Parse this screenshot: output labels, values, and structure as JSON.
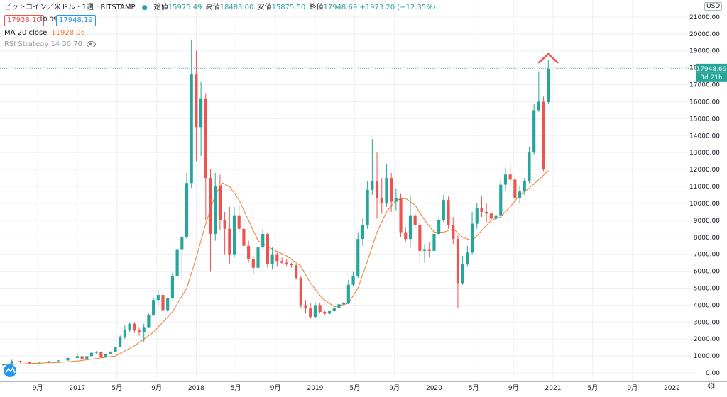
{
  "header": {
    "symbol": "ビットコイン／米ドル · 1週 · BITSTAMP",
    "open_label": "始値",
    "open_value": "15975.49",
    "high_label": "高値",
    "high_value": "18483.00",
    "low_label": "安値",
    "low_value": "15875.50",
    "close_label": "終値",
    "close_value": "17948.69",
    "change_value": "+1973.20 (+12.35%)"
  },
  "bid": "17938.10",
  "spread": "10.09",
  "ask": "17948.19",
  "ma_legend": {
    "label": "MA 20 close",
    "value": "11928.06"
  },
  "rsi_legend": {
    "label": "RSI Strategy 14 30 70"
  },
  "currency_button": "USD",
  "price_label": "17948.69",
  "countdown_label": "3d 21h",
  "colors": {
    "up": "#26a69a",
    "down": "#ef5350",
    "ma": "#f57c2b",
    "grid": "#eef0f3",
    "current_price_line": "#26a69a"
  },
  "chart_data": {
    "type": "candlestick",
    "timeframe": "1 week",
    "ylim": [
      -500,
      22000
    ],
    "y_ticks": [
      0,
      1000,
      2000,
      3000,
      4000,
      5000,
      6000,
      7000,
      8000,
      9000,
      10000,
      11000,
      12000,
      13000,
      14000,
      15000,
      16000,
      17000,
      18000,
      19000,
      20000,
      21000
    ],
    "y_tick_labels": [
      "0.00",
      "1000.00",
      "2000.00",
      "3000.00",
      "4000.00",
      "5000.00",
      "6000.00",
      "7000.00",
      "8000.00",
      "9000.00",
      "10000.00",
      "11000.00",
      "12000.00",
      "13000.00",
      "14000.00",
      "15000.00",
      "16000.00",
      "17000.00",
      "18000.00",
      "19000.00",
      "20000.00",
      "21000.00"
    ],
    "x_ticks": [
      "9月",
      "2017",
      "5月",
      "9月",
      "2018",
      "5月",
      "9月",
      "2019",
      "5月",
      "9月",
      "2020",
      "5月",
      "9月",
      "2021",
      "5月",
      "9月",
      "2022"
    ],
    "x_tick_positions": [
      2016.667,
      2017.0,
      2017.333,
      2017.667,
      2018.0,
      2018.333,
      2018.667,
      2019.0,
      2019.333,
      2019.667,
      2020.0,
      2020.333,
      2020.667,
      2021.0,
      2021.333,
      2021.667,
      2022.0
    ],
    "xlim": [
      2016.35,
      2022.2
    ],
    "candles": [
      {
        "t": 2016.38,
        "o": 450,
        "h": 540,
        "l": 440,
        "c": 530
      },
      {
        "t": 2016.45,
        "o": 530,
        "h": 780,
        "l": 520,
        "c": 700
      },
      {
        "t": 2016.52,
        "o": 700,
        "h": 720,
        "l": 580,
        "c": 650
      },
      {
        "t": 2016.6,
        "o": 650,
        "h": 660,
        "l": 550,
        "c": 580
      },
      {
        "t": 2016.68,
        "o": 580,
        "h": 620,
        "l": 560,
        "c": 610
      },
      {
        "t": 2016.76,
        "o": 610,
        "h": 700,
        "l": 600,
        "c": 690
      },
      {
        "t": 2016.84,
        "o": 690,
        "h": 760,
        "l": 680,
        "c": 740
      },
      {
        "t": 2016.92,
        "o": 740,
        "h": 900,
        "l": 730,
        "c": 880
      },
      {
        "t": 2017.0,
        "o": 880,
        "h": 1150,
        "l": 870,
        "c": 990
      },
      {
        "t": 2017.04,
        "o": 990,
        "h": 1000,
        "l": 760,
        "c": 820
      },
      {
        "t": 2017.08,
        "o": 820,
        "h": 1000,
        "l": 810,
        "c": 990
      },
      {
        "t": 2017.12,
        "o": 990,
        "h": 1200,
        "l": 980,
        "c": 1190
      },
      {
        "t": 2017.16,
        "o": 1190,
        "h": 1290,
        "l": 1100,
        "c": 1240
      },
      {
        "t": 2017.2,
        "o": 1240,
        "h": 1260,
        "l": 900,
        "c": 960
      },
      {
        "t": 2017.24,
        "o": 960,
        "h": 1150,
        "l": 930,
        "c": 1130
      },
      {
        "t": 2017.28,
        "o": 1130,
        "h": 1280,
        "l": 1100,
        "c": 1260
      },
      {
        "t": 2017.32,
        "o": 1260,
        "h": 1550,
        "l": 1250,
        "c": 1530
      },
      {
        "t": 2017.36,
        "o": 1530,
        "h": 2200,
        "l": 1520,
        "c": 2100
      },
      {
        "t": 2017.4,
        "o": 2100,
        "h": 2800,
        "l": 2000,
        "c": 2550
      },
      {
        "t": 2017.44,
        "o": 2550,
        "h": 2980,
        "l": 2400,
        "c": 2900
      },
      {
        "t": 2017.48,
        "o": 2900,
        "h": 3000,
        "l": 2350,
        "c": 2500
      },
      {
        "t": 2017.52,
        "o": 2500,
        "h": 2700,
        "l": 2200,
        "c": 2400
      },
      {
        "t": 2017.56,
        "o": 2400,
        "h": 2900,
        "l": 1850,
        "c": 2700
      },
      {
        "t": 2017.6,
        "o": 2700,
        "h": 3500,
        "l": 2650,
        "c": 3400
      },
      {
        "t": 2017.64,
        "o": 3400,
        "h": 4400,
        "l": 3350,
        "c": 4300
      },
      {
        "t": 2017.68,
        "o": 4300,
        "h": 4900,
        "l": 4000,
        "c": 4600
      },
      {
        "t": 2017.72,
        "o": 4600,
        "h": 4700,
        "l": 3000,
        "c": 3700
      },
      {
        "t": 2017.76,
        "o": 3700,
        "h": 4450,
        "l": 3600,
        "c": 4400
      },
      {
        "t": 2017.8,
        "o": 4400,
        "h": 5900,
        "l": 4350,
        "c": 5700
      },
      {
        "t": 2017.84,
        "o": 5700,
        "h": 7500,
        "l": 5400,
        "c": 7300
      },
      {
        "t": 2017.88,
        "o": 7300,
        "h": 8100,
        "l": 5500,
        "c": 8000
      },
      {
        "t": 2017.92,
        "o": 8000,
        "h": 11800,
        "l": 7900,
        "c": 11200
      },
      {
        "t": 2017.96,
        "o": 11200,
        "h": 19666,
        "l": 10900,
        "c": 17600
      },
      {
        "t": 2018.0,
        "o": 17600,
        "h": 19000,
        "l": 12500,
        "c": 14500
      },
      {
        "t": 2018.04,
        "o": 14500,
        "h": 17200,
        "l": 12800,
        "c": 16200
      },
      {
        "t": 2018.08,
        "o": 16200,
        "h": 16500,
        "l": 9000,
        "c": 11500
      },
      {
        "t": 2018.12,
        "o": 11500,
        "h": 12000,
        "l": 6000,
        "c": 8200
      },
      {
        "t": 2018.16,
        "o": 8200,
        "h": 11800,
        "l": 7800,
        "c": 11000
      },
      {
        "t": 2018.2,
        "o": 11000,
        "h": 11700,
        "l": 8400,
        "c": 9000
      },
      {
        "t": 2018.24,
        "o": 9000,
        "h": 9500,
        "l": 7000,
        "c": 8500
      },
      {
        "t": 2018.28,
        "o": 8500,
        "h": 9800,
        "l": 6400,
        "c": 7000
      },
      {
        "t": 2018.32,
        "o": 7000,
        "h": 9800,
        "l": 6800,
        "c": 9300
      },
      {
        "t": 2018.36,
        "o": 9300,
        "h": 9900,
        "l": 8300,
        "c": 8500
      },
      {
        "t": 2018.4,
        "o": 8500,
        "h": 8800,
        "l": 7300,
        "c": 7500
      },
      {
        "t": 2018.44,
        "o": 7500,
        "h": 7800,
        "l": 6500,
        "c": 6700
      },
      {
        "t": 2018.48,
        "o": 6700,
        "h": 6900,
        "l": 5800,
        "c": 6200
      },
      {
        "t": 2018.52,
        "o": 6200,
        "h": 7600,
        "l": 6100,
        "c": 7400
      },
      {
        "t": 2018.56,
        "o": 7400,
        "h": 8500,
        "l": 7300,
        "c": 8200
      },
      {
        "t": 2018.6,
        "o": 8200,
        "h": 8300,
        "l": 6200,
        "c": 6400
      },
      {
        "t": 2018.64,
        "o": 6400,
        "h": 7400,
        "l": 6100,
        "c": 7000
      },
      {
        "t": 2018.68,
        "o": 7000,
        "h": 7100,
        "l": 6300,
        "c": 6600
      },
      {
        "t": 2018.72,
        "o": 6600,
        "h": 6800,
        "l": 6400,
        "c": 6500
      },
      {
        "t": 2018.76,
        "o": 6500,
        "h": 6700,
        "l": 6300,
        "c": 6400
      },
      {
        "t": 2018.8,
        "o": 6400,
        "h": 6500,
        "l": 6200,
        "c": 6350
      },
      {
        "t": 2018.84,
        "o": 6350,
        "h": 6400,
        "l": 5500,
        "c": 5600
      },
      {
        "t": 2018.88,
        "o": 5600,
        "h": 5700,
        "l": 3800,
        "c": 4000
      },
      {
        "t": 2018.92,
        "o": 4000,
        "h": 4300,
        "l": 3500,
        "c": 3800
      },
      {
        "t": 2018.96,
        "o": 3800,
        "h": 4100,
        "l": 3200,
        "c": 3300
      },
      {
        "t": 2019.0,
        "o": 3300,
        "h": 4200,
        "l": 3200,
        "c": 4000
      },
      {
        "t": 2019.04,
        "o": 4000,
        "h": 4100,
        "l": 3500,
        "c": 3600
      },
      {
        "t": 2019.08,
        "o": 3600,
        "h": 3700,
        "l": 3400,
        "c": 3500
      },
      {
        "t": 2019.12,
        "o": 3500,
        "h": 3700,
        "l": 3400,
        "c": 3650
      },
      {
        "t": 2019.16,
        "o": 3650,
        "h": 3900,
        "l": 3600,
        "c": 3850
      },
      {
        "t": 2019.2,
        "o": 3850,
        "h": 4100,
        "l": 3800,
        "c": 4050
      },
      {
        "t": 2019.24,
        "o": 4050,
        "h": 4200,
        "l": 3950,
        "c": 4100
      },
      {
        "t": 2019.28,
        "o": 4100,
        "h": 5500,
        "l": 4050,
        "c": 5200
      },
      {
        "t": 2019.32,
        "o": 5200,
        "h": 6000,
        "l": 5100,
        "c": 5700
      },
      {
        "t": 2019.36,
        "o": 5700,
        "h": 8300,
        "l": 5600,
        "c": 7900
      },
      {
        "t": 2019.4,
        "o": 7900,
        "h": 9100,
        "l": 7500,
        "c": 8700
      },
      {
        "t": 2019.44,
        "o": 8700,
        "h": 11300,
        "l": 8500,
        "c": 10800
      },
      {
        "t": 2019.48,
        "o": 10800,
        "h": 13800,
        "l": 10500,
        "c": 11300
      },
      {
        "t": 2019.52,
        "o": 11300,
        "h": 13000,
        "l": 9100,
        "c": 10300
      },
      {
        "t": 2019.56,
        "o": 10300,
        "h": 11500,
        "l": 9400,
        "c": 10000
      },
      {
        "t": 2019.6,
        "o": 10000,
        "h": 12300,
        "l": 9800,
        "c": 11500
      },
      {
        "t": 2019.64,
        "o": 11500,
        "h": 11800,
        "l": 9500,
        "c": 10100
      },
      {
        "t": 2019.68,
        "o": 10100,
        "h": 10900,
        "l": 9600,
        "c": 10300
      },
      {
        "t": 2019.72,
        "o": 10300,
        "h": 10600,
        "l": 8000,
        "c": 8300
      },
      {
        "t": 2019.76,
        "o": 8300,
        "h": 8600,
        "l": 7700,
        "c": 7900
      },
      {
        "t": 2019.8,
        "o": 7900,
        "h": 10500,
        "l": 7400,
        "c": 9300
      },
      {
        "t": 2019.84,
        "o": 9300,
        "h": 9500,
        "l": 8500,
        "c": 8700
      },
      {
        "t": 2019.88,
        "o": 8700,
        "h": 8800,
        "l": 6500,
        "c": 7200
      },
      {
        "t": 2019.92,
        "o": 7200,
        "h": 7600,
        "l": 6500,
        "c": 7300
      },
      {
        "t": 2019.96,
        "o": 7300,
        "h": 7700,
        "l": 6800,
        "c": 7200
      },
      {
        "t": 2020.0,
        "o": 7200,
        "h": 8500,
        "l": 7000,
        "c": 8200
      },
      {
        "t": 2020.04,
        "o": 8200,
        "h": 9200,
        "l": 8100,
        "c": 9000
      },
      {
        "t": 2020.08,
        "o": 9000,
        "h": 10500,
        "l": 8900,
        "c": 10200
      },
      {
        "t": 2020.12,
        "o": 10200,
        "h": 10400,
        "l": 8500,
        "c": 8700
      },
      {
        "t": 2020.16,
        "o": 8700,
        "h": 9200,
        "l": 7600,
        "c": 7900
      },
      {
        "t": 2020.2,
        "o": 7900,
        "h": 8100,
        "l": 3800,
        "c": 5300
      },
      {
        "t": 2020.24,
        "o": 5300,
        "h": 6900,
        "l": 5200,
        "c": 6400
      },
      {
        "t": 2020.28,
        "o": 6400,
        "h": 7500,
        "l": 6300,
        "c": 7100
      },
      {
        "t": 2020.32,
        "o": 7100,
        "h": 9500,
        "l": 7000,
        "c": 8800
      },
      {
        "t": 2020.36,
        "o": 8800,
        "h": 10000,
        "l": 8500,
        "c": 9700
      },
      {
        "t": 2020.4,
        "o": 9700,
        "h": 10400,
        "l": 9200,
        "c": 9500
      },
      {
        "t": 2020.44,
        "o": 9500,
        "h": 10000,
        "l": 8900,
        "c": 9400
      },
      {
        "t": 2020.48,
        "o": 9400,
        "h": 9500,
        "l": 9000,
        "c": 9100
      },
      {
        "t": 2020.52,
        "o": 9100,
        "h": 9400,
        "l": 9000,
        "c": 9300
      },
      {
        "t": 2020.56,
        "o": 9300,
        "h": 11400,
        "l": 9200,
        "c": 11100
      },
      {
        "t": 2020.6,
        "o": 11100,
        "h": 12100,
        "l": 10700,
        "c": 11700
      },
      {
        "t": 2020.64,
        "o": 11700,
        "h": 12400,
        "l": 11000,
        "c": 11400
      },
      {
        "t": 2020.68,
        "o": 11400,
        "h": 11700,
        "l": 9900,
        "c": 10300
      },
      {
        "t": 2020.72,
        "o": 10300,
        "h": 11000,
        "l": 10000,
        "c": 10700
      },
      {
        "t": 2020.76,
        "o": 10700,
        "h": 11500,
        "l": 10500,
        "c": 11300
      },
      {
        "t": 2020.8,
        "o": 11300,
        "h": 13300,
        "l": 11200,
        "c": 13000
      },
      {
        "t": 2020.84,
        "o": 13000,
        "h": 15900,
        "l": 12900,
        "c": 15500
      },
      {
        "t": 2020.88,
        "o": 15500,
        "h": 17800,
        "l": 15400,
        "c": 16000
      },
      {
        "t": 2020.92,
        "o": 16000,
        "h": 16300,
        "l": 11900,
        "c": 12000
      },
      {
        "t": 2020.96,
        "o": 15975.49,
        "h": 18483.0,
        "l": 15875.5,
        "c": 17948.69
      }
    ],
    "ma_20_close": [
      {
        "t": 2016.38,
        "v": 480
      },
      {
        "t": 2016.6,
        "v": 560
      },
      {
        "t": 2016.84,
        "v": 620
      },
      {
        "t": 2017.0,
        "v": 700
      },
      {
        "t": 2017.16,
        "v": 850
      },
      {
        "t": 2017.32,
        "v": 1000
      },
      {
        "t": 2017.48,
        "v": 1600
      },
      {
        "t": 2017.64,
        "v": 2400
      },
      {
        "t": 2017.8,
        "v": 3600
      },
      {
        "t": 2017.92,
        "v": 5000
      },
      {
        "t": 2018.0,
        "v": 6800
      },
      {
        "t": 2018.08,
        "v": 8800
      },
      {
        "t": 2018.16,
        "v": 10500
      },
      {
        "t": 2018.22,
        "v": 11200
      },
      {
        "t": 2018.28,
        "v": 11000
      },
      {
        "t": 2018.36,
        "v": 10200
      },
      {
        "t": 2018.44,
        "v": 9000
      },
      {
        "t": 2018.52,
        "v": 7800
      },
      {
        "t": 2018.64,
        "v": 7300
      },
      {
        "t": 2018.76,
        "v": 6900
      },
      {
        "t": 2018.88,
        "v": 6300
      },
      {
        "t": 2018.96,
        "v": 5300
      },
      {
        "t": 2019.06,
        "v": 4400
      },
      {
        "t": 2019.16,
        "v": 3900
      },
      {
        "t": 2019.28,
        "v": 4100
      },
      {
        "t": 2019.36,
        "v": 5000
      },
      {
        "t": 2019.44,
        "v": 6600
      },
      {
        "t": 2019.52,
        "v": 8300
      },
      {
        "t": 2019.6,
        "v": 9500
      },
      {
        "t": 2019.68,
        "v": 10200
      },
      {
        "t": 2019.76,
        "v": 10300
      },
      {
        "t": 2019.84,
        "v": 9900
      },
      {
        "t": 2019.92,
        "v": 9000
      },
      {
        "t": 2020.0,
        "v": 8300
      },
      {
        "t": 2020.08,
        "v": 8300
      },
      {
        "t": 2020.16,
        "v": 8500
      },
      {
        "t": 2020.24,
        "v": 8000
      },
      {
        "t": 2020.32,
        "v": 7800
      },
      {
        "t": 2020.4,
        "v": 8400
      },
      {
        "t": 2020.48,
        "v": 9000
      },
      {
        "t": 2020.56,
        "v": 9200
      },
      {
        "t": 2020.64,
        "v": 9800
      },
      {
        "t": 2020.72,
        "v": 10500
      },
      {
        "t": 2020.8,
        "v": 10900
      },
      {
        "t": 2020.88,
        "v": 11400
      },
      {
        "t": 2020.96,
        "v": 11928.06
      }
    ]
  }
}
